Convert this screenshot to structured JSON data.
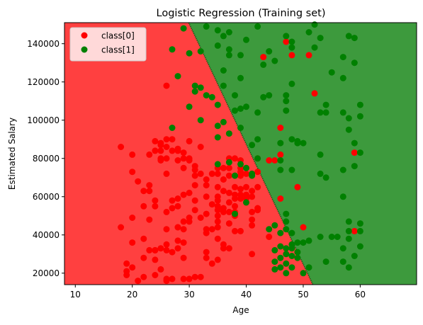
{
  "chart_data": {
    "type": "scatter",
    "title": "Logistic Regression (Training set)",
    "xlabel": "Age",
    "ylabel": "Estimated Salary",
    "xlim": [
      8.1,
      69.9
    ],
    "ylim": [
      14000,
      151000
    ],
    "x_ticks": [
      10,
      20,
      30,
      40,
      50,
      60
    ],
    "y_ticks": [
      20000,
      40000,
      60000,
      80000,
      100000,
      120000,
      140000
    ],
    "y_tick_labels": [
      "20000",
      "40000",
      "60000",
      "80000",
      "100000",
      "120000",
      "140000"
    ],
    "legend_position": "top-left",
    "decision_boundary": [
      [
        29.9,
        151000
      ],
      [
        51.7,
        14000
      ]
    ],
    "region_colors": {
      "class0": "#ff4040",
      "class1": "#3d9a3d"
    },
    "series": [
      {
        "name": "class[0]",
        "color": "#ff0000",
        "points": [
          [
            18,
            86000
          ],
          [
            20,
            82000
          ],
          [
            20,
            73000
          ],
          [
            20,
            49000
          ],
          [
            20,
            36000
          ],
          [
            18,
            44000
          ],
          [
            19,
            25000
          ],
          [
            19,
            21000
          ],
          [
            19,
            19000
          ],
          [
            20,
            23000
          ],
          [
            21,
            68000
          ],
          [
            21,
            16000
          ],
          [
            22,
            63000
          ],
          [
            22,
            55000
          ],
          [
            22,
            28000
          ],
          [
            22,
            18000
          ],
          [
            23,
            82000
          ],
          [
            23,
            66000
          ],
          [
            23,
            63000
          ],
          [
            23,
            48000
          ],
          [
            23,
            32000
          ],
          [
            24,
            84000
          ],
          [
            24,
            58000
          ],
          [
            24,
            55000
          ],
          [
            24,
            89000
          ],
          [
            24,
            27000
          ],
          [
            24,
            32000
          ],
          [
            24,
            19000
          ],
          [
            25,
            88000
          ],
          [
            25,
            87000
          ],
          [
            25,
            84000
          ],
          [
            25,
            80000
          ],
          [
            25,
            79000
          ],
          [
            25,
            33000
          ],
          [
            25,
            22000
          ],
          [
            26,
            90000
          ],
          [
            26,
            86000
          ],
          [
            26,
            80000
          ],
          [
            26,
            72000
          ],
          [
            26,
            52000
          ],
          [
            26,
            43000
          ],
          [
            26,
            35000
          ],
          [
            26,
            32000
          ],
          [
            26,
            17000
          ],
          [
            26,
            16000
          ],
          [
            26,
            118000
          ],
          [
            27,
            90000
          ],
          [
            27,
            84000
          ],
          [
            27,
            58000
          ],
          [
            27,
            54000
          ],
          [
            27,
            31000
          ],
          [
            27,
            17000
          ],
          [
            28,
            85000
          ],
          [
            28,
            84000
          ],
          [
            28,
            79000
          ],
          [
            28,
            59000
          ],
          [
            28,
            55000
          ],
          [
            28,
            44000
          ],
          [
            28,
            37000
          ],
          [
            28,
            33000
          ],
          [
            29,
            83000
          ],
          [
            29,
            80000
          ],
          [
            29,
            75000
          ],
          [
            29,
            61000
          ],
          [
            29,
            47000
          ],
          [
            29,
            43000
          ],
          [
            29,
            28000
          ],
          [
            29,
            17000
          ],
          [
            30,
            89000
          ],
          [
            30,
            79000
          ],
          [
            30,
            80000
          ],
          [
            30,
            62000
          ],
          [
            30,
            49000
          ],
          [
            30,
            17000
          ],
          [
            31,
            76000
          ],
          [
            31,
            74000
          ],
          [
            31,
            71000
          ],
          [
            31,
            66000
          ],
          [
            31,
            58000
          ],
          [
            31,
            18000
          ],
          [
            32,
            72000
          ],
          [
            32,
            86000
          ],
          [
            32,
            18000
          ],
          [
            33,
            69000
          ],
          [
            33,
            60000
          ],
          [
            33,
            51000
          ],
          [
            33,
            43000
          ],
          [
            33,
            41000
          ],
          [
            33,
            28000
          ],
          [
            33,
            31000
          ],
          [
            34,
            72000
          ],
          [
            34,
            25000
          ],
          [
            34,
            43000
          ],
          [
            35,
            75000
          ],
          [
            35,
            72000
          ],
          [
            35,
            65000
          ],
          [
            35,
            58000
          ],
          [
            35,
            53000
          ],
          [
            35,
            50000
          ],
          [
            35,
            55000
          ],
          [
            35,
            60000
          ],
          [
            35,
            47000
          ],
          [
            35,
            44000
          ],
          [
            35,
            38000
          ],
          [
            35,
            27000
          ],
          [
            36,
            75000
          ],
          [
            36,
            63000
          ],
          [
            36,
            52000
          ],
          [
            36,
            54000
          ],
          [
            36,
            33000
          ],
          [
            37,
            80000
          ],
          [
            37,
            75000
          ],
          [
            37,
            71000
          ],
          [
            37,
            62000
          ],
          [
            37,
            57000
          ],
          [
            37,
            52000
          ],
          [
            37,
            33000
          ],
          [
            38,
            80000
          ],
          [
            38,
            71000
          ],
          [
            38,
            65000
          ],
          [
            38,
            61000
          ],
          [
            38,
            59000
          ],
          [
            38,
            55000
          ],
          [
            38,
            50000
          ],
          [
            38,
            42000
          ],
          [
            39,
            79000
          ],
          [
            39,
            75000
          ],
          [
            39,
            73000
          ],
          [
            39,
            71000
          ],
          [
            39,
            61000
          ],
          [
            39,
            59000
          ],
          [
            39,
            42000
          ],
          [
            40,
            75000
          ],
          [
            40,
            72000
          ],
          [
            40,
            65000
          ],
          [
            40,
            61000
          ],
          [
            40,
            60000
          ],
          [
            40,
            59000
          ],
          [
            40,
            57000
          ],
          [
            41,
            72000
          ],
          [
            41,
            63000
          ],
          [
            41,
            60000
          ],
          [
            41,
            52000
          ],
          [
            41,
            45000
          ],
          [
            41,
            30000
          ],
          [
            42,
            80000
          ],
          [
            42,
            73000
          ],
          [
            42,
            65000
          ],
          [
            42,
            53000
          ],
          [
            42,
            54000
          ],
          [
            43,
            133000
          ],
          [
            44,
            79000
          ],
          [
            44,
            39000
          ],
          [
            45,
            79000
          ],
          [
            46,
            96000
          ],
          [
            46,
            82000
          ],
          [
            46,
            59000
          ],
          [
            47,
            141000
          ],
          [
            48,
            134000
          ],
          [
            49,
            65000
          ],
          [
            50,
            44000
          ],
          [
            51,
            134000
          ],
          [
            52,
            114000
          ],
          [
            59,
            83000
          ],
          [
            59,
            42000
          ],
          [
            38,
            52000
          ],
          [
            36,
            35000
          ],
          [
            34,
            56000
          ],
          [
            32,
            49000
          ],
          [
            30,
            47000
          ],
          [
            28,
            44000
          ],
          [
            24,
            32000
          ],
          [
            22,
            38000
          ],
          [
            29,
            36000
          ],
          [
            31,
            53000
          ],
          [
            33,
            66000
          ],
          [
            37,
            46000
          ],
          [
            39,
            64000
          ],
          [
            41,
            48000
          ],
          [
            36,
            69000
          ]
        ]
      },
      {
        "name": "class[1]",
        "color": "#008000",
        "points": [
          [
            27,
            137000
          ],
          [
            28,
            123000
          ],
          [
            27,
            96000
          ],
          [
            29,
            148000
          ],
          [
            30,
            135000
          ],
          [
            30,
            107000
          ],
          [
            31,
            118000
          ],
          [
            31,
            115000
          ],
          [
            32,
            136000
          ],
          [
            32,
            117000
          ],
          [
            32,
            100000
          ],
          [
            33,
            149000
          ],
          [
            33,
            113000
          ],
          [
            34,
            112000
          ],
          [
            35,
            147000
          ],
          [
            35,
            139000
          ],
          [
            35,
            97000
          ],
          [
            35,
            91000
          ],
          [
            35,
            77000
          ],
          [
            35,
            108000
          ],
          [
            36,
            144000
          ],
          [
            36,
            126000
          ],
          [
            36,
            118000
          ],
          [
            36,
            99000
          ],
          [
            37,
            146000
          ],
          [
            37,
            137000
          ],
          [
            37,
            134000
          ],
          [
            37,
            93000
          ],
          [
            37,
            78000
          ],
          [
            38,
            113000
          ],
          [
            38,
            105000
          ],
          [
            38,
            71000
          ],
          [
            38,
            51000
          ],
          [
            39,
            134000
          ],
          [
            39,
            122000
          ],
          [
            39,
            106000
          ],
          [
            39,
            96000
          ],
          [
            39,
            77000
          ],
          [
            40,
            142000
          ],
          [
            40,
            107000
          ],
          [
            40,
            75000
          ],
          [
            40,
            57000
          ],
          [
            41,
            87000
          ],
          [
            41,
            72000
          ],
          [
            41,
            71000
          ],
          [
            42,
            149000
          ],
          [
            42,
            104000
          ],
          [
            42,
            90000
          ],
          [
            42,
            80000
          ],
          [
            43,
            129000
          ],
          [
            43,
            112000
          ],
          [
            44,
            136000
          ],
          [
            44,
            43000
          ],
          [
            44,
            113000
          ],
          [
            45,
            131000
          ],
          [
            45,
            45000
          ],
          [
            45,
            32000
          ],
          [
            45,
            26000
          ],
          [
            45,
            22000
          ],
          [
            46,
            88000
          ],
          [
            46,
            79000
          ],
          [
            46,
            74000
          ],
          [
            46,
            41000
          ],
          [
            46,
            34000
          ],
          [
            46,
            28000
          ],
          [
            46,
            23000
          ],
          [
            47,
            144000
          ],
          [
            47,
            113000
          ],
          [
            47,
            110000
          ],
          [
            47,
            105000
          ],
          [
            47,
            51000
          ],
          [
            47,
            43000
          ],
          [
            47,
            33000
          ],
          [
            47,
            30000
          ],
          [
            47,
            25000
          ],
          [
            47,
            20000
          ],
          [
            47,
            47000
          ],
          [
            48,
            141000
          ],
          [
            48,
            138000
          ],
          [
            48,
            119000
          ],
          [
            48,
            90000
          ],
          [
            48,
            74000
          ],
          [
            48,
            41000
          ],
          [
            48,
            35000
          ],
          [
            48,
            33000
          ],
          [
            48,
            29000
          ],
          [
            48,
            23000
          ],
          [
            49,
            89000
          ],
          [
            49,
            88000
          ],
          [
            49,
            36000
          ],
          [
            49,
            28000
          ],
          [
            50,
            88000
          ],
          [
            50,
            36000
          ],
          [
            50,
            20000
          ],
          [
            51,
            146000
          ],
          [
            51,
            23000
          ],
          [
            52,
            150000
          ],
          [
            52,
            138000
          ],
          [
            53,
            143000
          ],
          [
            53,
            104000
          ],
          [
            53,
            82000
          ],
          [
            53,
            72000
          ],
          [
            54,
            108000
          ],
          [
            54,
            104000
          ],
          [
            54,
            70000
          ],
          [
            54,
            26000
          ],
          [
            55,
            125000
          ],
          [
            55,
            39000
          ],
          [
            57,
            133000
          ],
          [
            57,
            122000
          ],
          [
            57,
            104000
          ],
          [
            57,
            74000
          ],
          [
            57,
            60000
          ],
          [
            58,
            144000
          ],
          [
            58,
            101000
          ],
          [
            58,
            95000
          ],
          [
            58,
            47000
          ],
          [
            58,
            38000
          ],
          [
            58,
            23000
          ],
          [
            59,
            143000
          ],
          [
            59,
            130000
          ],
          [
            59,
            88000
          ],
          [
            59,
            76000
          ],
          [
            59,
            29000
          ],
          [
            60,
            108000
          ],
          [
            60,
            102000
          ],
          [
            60,
            83000
          ],
          [
            60,
            46000
          ],
          [
            60,
            42000
          ],
          [
            60,
            34000
          ],
          [
            57,
            33000
          ],
          [
            57,
            26000
          ],
          [
            56,
            39000
          ],
          [
            53,
            39000
          ],
          [
            51,
            37000
          ],
          [
            49,
            31000
          ],
          [
            58,
            42000
          ]
        ]
      }
    ]
  }
}
